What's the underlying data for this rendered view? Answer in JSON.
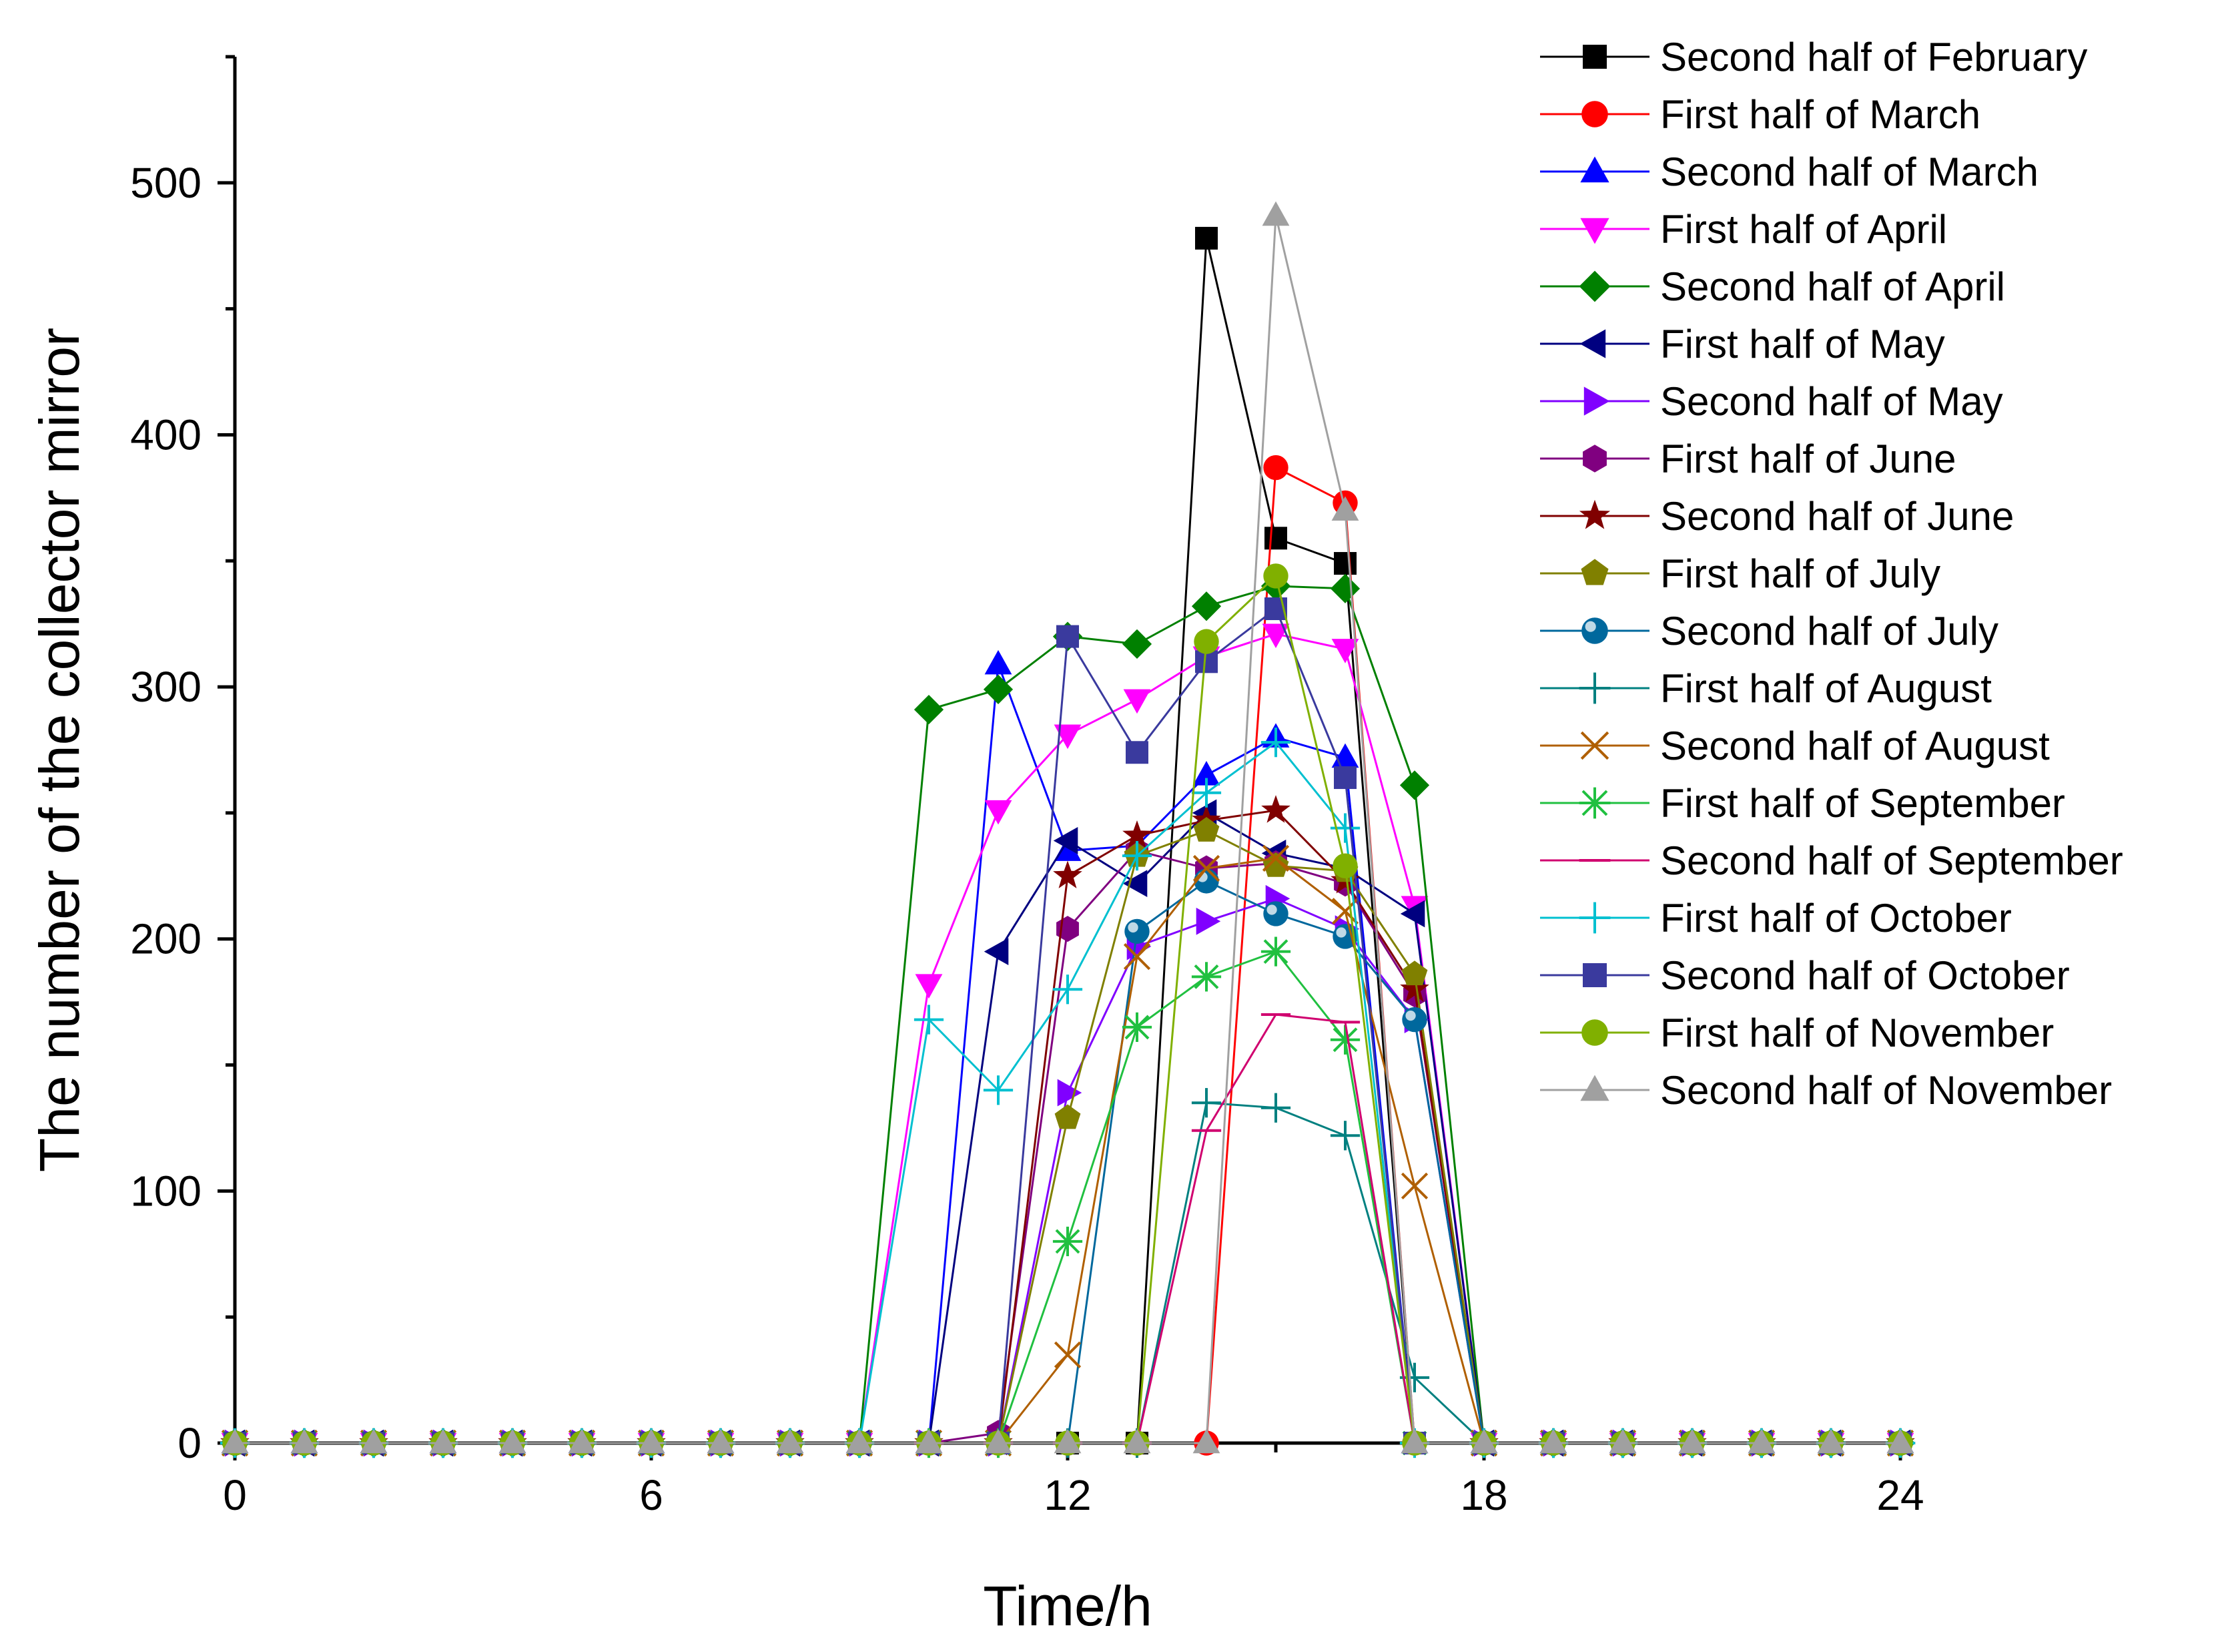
{
  "chart_data": {
    "type": "line",
    "title": "",
    "xlabel": "Time/h",
    "ylabel": "The number of the collector mirror",
    "xlim": [
      0,
      24
    ],
    "ylim": [
      0,
      550
    ],
    "xticks": [
      0,
      6,
      12,
      18,
      24
    ],
    "yticks": [
      0,
      100,
      200,
      300,
      400,
      500
    ],
    "grid": false,
    "legend_position": "top-right",
    "x": [
      0,
      1,
      2,
      3,
      4,
      5,
      6,
      7,
      8,
      9,
      10,
      11,
      12,
      13,
      14,
      15,
      16,
      17,
      18,
      19,
      20,
      21,
      22,
      23,
      24
    ],
    "series": [
      {
        "name": "Second half of February",
        "color": "#000000",
        "marker": "square",
        "values": [
          0,
          0,
          0,
          0,
          0,
          0,
          0,
          0,
          0,
          0,
          0,
          0,
          0,
          0,
          478,
          359,
          349,
          0,
          0,
          0,
          0,
          0,
          0,
          0,
          0
        ]
      },
      {
        "name": "First half of March",
        "color": "#ff0000",
        "marker": "circle",
        "values": [
          0,
          0,
          0,
          0,
          0,
          0,
          0,
          0,
          0,
          0,
          0,
          0,
          0,
          0,
          0,
          387,
          373,
          0,
          0,
          0,
          0,
          0,
          0,
          0,
          0
        ]
      },
      {
        "name": "Second half of March",
        "color": "#0000ff",
        "marker": "triangle-up",
        "values": [
          0,
          0,
          0,
          0,
          0,
          0,
          0,
          0,
          0,
          0,
          0,
          309,
          235,
          237,
          265,
          280,
          272,
          0,
          0,
          0,
          0,
          0,
          0,
          0,
          0
        ]
      },
      {
        "name": "First half of April",
        "color": "#ff00ff",
        "marker": "triangle-down",
        "values": [
          0,
          0,
          0,
          0,
          0,
          0,
          0,
          0,
          0,
          0,
          182,
          251,
          281,
          295,
          312,
          321,
          315,
          213,
          0,
          0,
          0,
          0,
          0,
          0,
          0
        ]
      },
      {
        "name": "Second half of April",
        "color": "#008000",
        "marker": "diamond",
        "values": [
          0,
          0,
          0,
          0,
          0,
          0,
          0,
          0,
          0,
          0,
          291,
          299,
          320,
          317,
          332,
          340,
          339,
          261,
          0,
          0,
          0,
          0,
          0,
          0,
          0
        ]
      },
      {
        "name": "First half of May",
        "color": "#000080",
        "marker": "triangle-left",
        "values": [
          0,
          0,
          0,
          0,
          0,
          0,
          0,
          0,
          0,
          0,
          0,
          195,
          239,
          222,
          250,
          234,
          228,
          210,
          0,
          0,
          0,
          0,
          0,
          0,
          0
        ]
      },
      {
        "name": "Second half of May",
        "color": "#8000ff",
        "marker": "triangle-right",
        "values": [
          0,
          0,
          0,
          0,
          0,
          0,
          0,
          0,
          0,
          0,
          0,
          0,
          139,
          197,
          207,
          216,
          204,
          168,
          0,
          0,
          0,
          0,
          0,
          0,
          0
        ]
      },
      {
        "name": "First half of June",
        "color": "#800080",
        "marker": "hexagon",
        "values": [
          0,
          0,
          0,
          0,
          0,
          0,
          0,
          0,
          0,
          0,
          0,
          4,
          204,
          235,
          228,
          230,
          222,
          178,
          0,
          0,
          0,
          0,
          0,
          0,
          0
        ]
      },
      {
        "name": "Second half of June",
        "color": "#800000",
        "marker": "star",
        "values": [
          0,
          0,
          0,
          0,
          0,
          0,
          0,
          0,
          0,
          0,
          0,
          0,
          225,
          241,
          247,
          251,
          223,
          180,
          0,
          0,
          0,
          0,
          0,
          0,
          0
        ]
      },
      {
        "name": "First half of July",
        "color": "#808000",
        "marker": "pentagon",
        "values": [
          0,
          0,
          0,
          0,
          0,
          0,
          0,
          0,
          0,
          0,
          0,
          0,
          129,
          233,
          243,
          229,
          227,
          186,
          0,
          0,
          0,
          0,
          0,
          0,
          0
        ]
      },
      {
        "name": "Second half of July",
        "color": "#00689d",
        "marker": "ball",
        "values": [
          0,
          0,
          0,
          0,
          0,
          0,
          0,
          0,
          0,
          0,
          0,
          0,
          0,
          203,
          223,
          210,
          201,
          168,
          0,
          0,
          0,
          0,
          0,
          0,
          0
        ]
      },
      {
        "name": "First half of August",
        "color": "#008080",
        "marker": "plus",
        "values": [
          0,
          0,
          0,
          0,
          0,
          0,
          0,
          0,
          0,
          0,
          0,
          0,
          0,
          0,
          135,
          133,
          122,
          26,
          0,
          0,
          0,
          0,
          0,
          0,
          0
        ]
      },
      {
        "name": "Second half of August",
        "color": "#b05f00",
        "marker": "cross",
        "values": [
          0,
          0,
          0,
          0,
          0,
          0,
          0,
          0,
          0,
          0,
          0,
          0,
          35,
          193,
          228,
          232,
          211,
          102,
          0,
          0,
          0,
          0,
          0,
          0,
          0
        ]
      },
      {
        "name": "First half of September",
        "color": "#20c040",
        "marker": "asterisk",
        "values": [
          0,
          0,
          0,
          0,
          0,
          0,
          0,
          0,
          0,
          0,
          0,
          0,
          80,
          165,
          185,
          195,
          160,
          0,
          0,
          0,
          0,
          0,
          0,
          0,
          0
        ]
      },
      {
        "name": "Second half of September",
        "color": "#d0006f",
        "marker": "dash",
        "values": [
          0,
          0,
          0,
          0,
          0,
          0,
          0,
          0,
          0,
          0,
          0,
          0,
          0,
          0,
          124,
          170,
          167,
          0,
          0,
          0,
          0,
          0,
          0,
          0,
          0
        ]
      },
      {
        "name": "First half of October",
        "color": "#00c0d0",
        "marker": "plus",
        "values": [
          0,
          0,
          0,
          0,
          0,
          0,
          0,
          0,
          0,
          0,
          168,
          140,
          180,
          233,
          258,
          278,
          244,
          0,
          0,
          0,
          0,
          0,
          0,
          0,
          0
        ]
      },
      {
        "name": "Second half of October",
        "color": "#3a3a9e",
        "marker": "square",
        "values": [
          0,
          0,
          0,
          0,
          0,
          0,
          0,
          0,
          0,
          0,
          0,
          0,
          320,
          274,
          310,
          331,
          264,
          0,
          0,
          0,
          0,
          0,
          0,
          0,
          0
        ]
      },
      {
        "name": "First half of November",
        "color": "#80b000",
        "marker": "circle",
        "values": [
          0,
          0,
          0,
          0,
          0,
          0,
          0,
          0,
          0,
          0,
          0,
          0,
          0,
          0,
          318,
          344,
          229,
          0,
          0,
          0,
          0,
          0,
          0,
          0,
          0
        ]
      },
      {
        "name": "Second half of November",
        "color": "#a0a0a0",
        "marker": "triangle-up",
        "values": [
          0,
          0,
          0,
          0,
          0,
          0,
          0,
          0,
          0,
          0,
          0,
          0,
          0,
          0,
          0,
          487,
          370,
          0,
          0,
          0,
          0,
          0,
          0,
          0,
          0
        ]
      }
    ]
  }
}
